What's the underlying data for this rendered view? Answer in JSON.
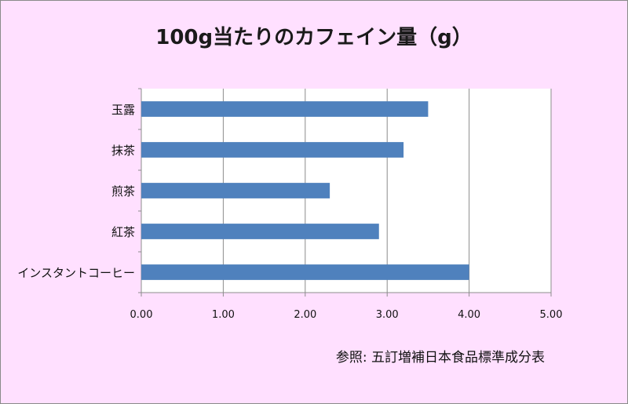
{
  "chart_data": {
    "type": "bar",
    "orientation": "horizontal",
    "title": "100g当たりのカフェイン量（g）",
    "categories": [
      "玉露",
      "抹茶",
      "煎茶",
      "紅茶",
      "インスタントコーヒー"
    ],
    "values": [
      3.5,
      3.2,
      2.3,
      2.9,
      4.0
    ],
    "xlim": [
      0,
      5
    ],
    "xticks": [
      "0.00",
      "1.00",
      "2.00",
      "3.00",
      "4.00",
      "5.00"
    ],
    "xlabel": "",
    "ylabel": "",
    "grid": true,
    "legend": "none",
    "bar_color": "#4f81bd",
    "background_color": "#ffe0ff",
    "plot_background_color": "#ffffff"
  },
  "source_note": "参照: 五訂増補日本食品標準成分表"
}
